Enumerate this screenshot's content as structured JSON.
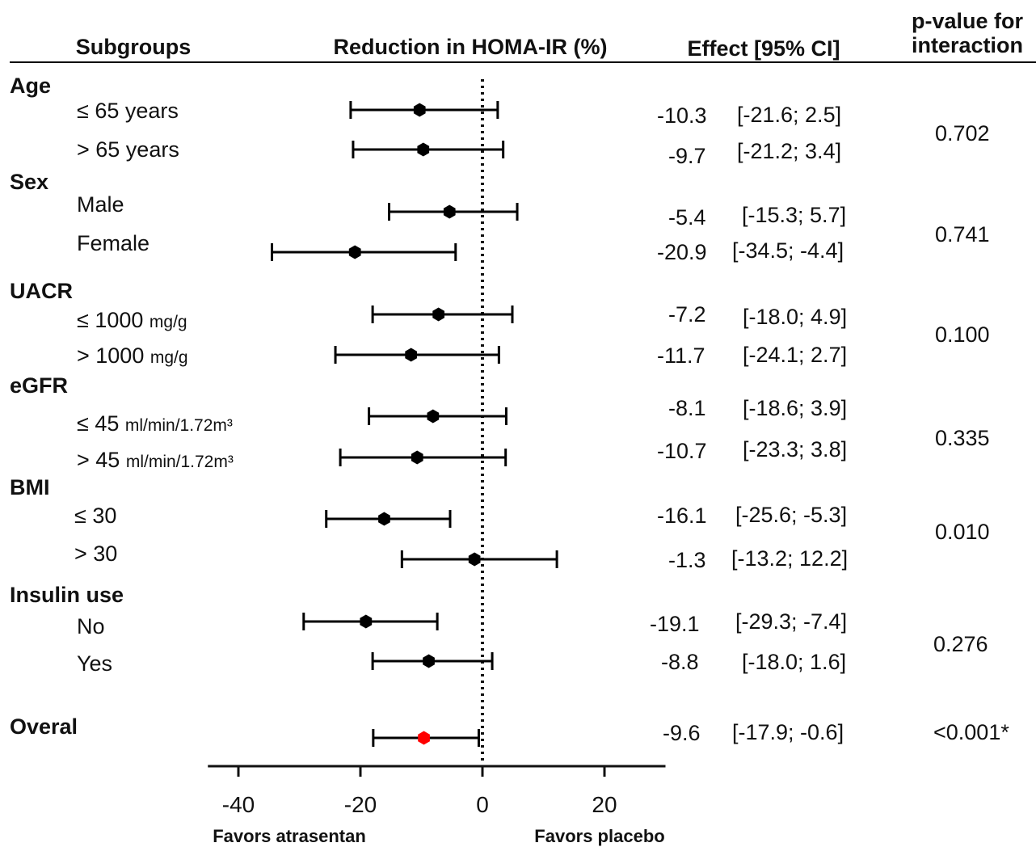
{
  "headers": {
    "subgroups": "Subgroups",
    "reduction": "Reduction in HOMA-IR (%)",
    "effect": "Effect [95% CI]",
    "pvalue_line1": "p-value for",
    "pvalue_line2": "interaction"
  },
  "groups": [
    {
      "name": "Age",
      "pvalue": "0.702"
    },
    {
      "name": "Sex",
      "pvalue": "0.741"
    },
    {
      "name": "UACR",
      "pvalue": "0.100"
    },
    {
      "name": "eGFR",
      "pvalue": "0.335"
    },
    {
      "name": "BMI",
      "pvalue": "0.010"
    },
    {
      "name": "Insulin use",
      "pvalue": "0.276"
    },
    {
      "name": "Overal",
      "pvalue": "<0.001*"
    }
  ],
  "rows": [
    {
      "group": 0,
      "label": "≤ 65 years",
      "unit": "",
      "effect": "-10.3",
      "ci": "[-21.6; 2.5]"
    },
    {
      "group": 0,
      "label": "> 65 years",
      "unit": "",
      "effect": "-9.7",
      "ci": "[-21.2; 3.4]"
    },
    {
      "group": 1,
      "label": "Male",
      "unit": "",
      "effect": "-5.4",
      "ci": "[-15.3; 5.7]"
    },
    {
      "group": 1,
      "label": "Female",
      "unit": "",
      "effect": "-20.9",
      "ci": "[-34.5; -4.4]"
    },
    {
      "group": 2,
      "label": "≤ 1000",
      "unit": "mg/g",
      "effect": "-7.2",
      "ci": "[-18.0; 4.9]"
    },
    {
      "group": 2,
      "label": "> 1000",
      "unit": "mg/g",
      "effect": "-11.7",
      "ci": "[-24.1; 2.7]"
    },
    {
      "group": 3,
      "label": "≤ 45",
      "unit": "ml/min/1.72m³",
      "effect": "-8.1",
      "ci": "[-18.6; 3.9]"
    },
    {
      "group": 3,
      "label": "> 45",
      "unit": "ml/min/1.72m³",
      "effect": "-10.7",
      "ci": "[-23.3; 3.8]"
    },
    {
      "group": 4,
      "label": "≤ 30",
      "unit": "",
      "effect": "-16.1",
      "ci": "[-25.6; -5.3]"
    },
    {
      "group": 4,
      "label": "> 30",
      "unit": "",
      "effect": "-1.3",
      "ci": "[-13.2; 12.2]"
    },
    {
      "group": 5,
      "label": "No",
      "unit": "",
      "effect": "-19.1",
      "ci": "[-29.3; -7.4]"
    },
    {
      "group": 5,
      "label": "Yes",
      "unit": "",
      "effect": "-8.8",
      "ci": "[-18.0; 1.6]"
    },
    {
      "group": 6,
      "label": "",
      "unit": "",
      "effect": "-9.6",
      "ci": "[-17.9; -0.6]"
    }
  ],
  "axis": {
    "favors_left": "Favors atrasentan",
    "favors_right": "Favors placebo"
  },
  "colors": {
    "point": "#000000",
    "overall_point": "#ff0000",
    "line": "#000000"
  },
  "chart_data": {
    "type": "forest",
    "title": "",
    "xlabel": "Reduction in HOMA-IR (%)",
    "xlim": [
      -45,
      30
    ],
    "xticks": [
      -40,
      -20,
      0,
      20
    ],
    "reference_line": 0,
    "points": [
      {
        "label": "≤ 65 years",
        "estimate": -10.3,
        "lower": -21.6,
        "upper": 2.5
      },
      {
        "label": "> 65 years",
        "estimate": -9.7,
        "lower": -21.2,
        "upper": 3.4
      },
      {
        "label": "Male",
        "estimate": -5.4,
        "lower": -15.3,
        "upper": 5.7
      },
      {
        "label": "Female",
        "estimate": -20.9,
        "lower": -34.5,
        "upper": -4.4
      },
      {
        "label": "≤ 1000 mg/g",
        "estimate": -7.2,
        "lower": -18.0,
        "upper": 4.9
      },
      {
        "label": "> 1000 mg/g",
        "estimate": -11.7,
        "lower": -24.1,
        "upper": 2.7
      },
      {
        "label": "≤ 45 ml/min/1.72m³",
        "estimate": -8.1,
        "lower": -18.6,
        "upper": 3.9
      },
      {
        "label": "> 45 ml/min/1.72m³",
        "estimate": -10.7,
        "lower": -23.3,
        "upper": 3.8
      },
      {
        "label": "≤ 30",
        "estimate": -16.1,
        "lower": -25.6,
        "upper": -5.3
      },
      {
        "label": "> 30",
        "estimate": -1.3,
        "lower": -13.2,
        "upper": 12.2
      },
      {
        "label": "No",
        "estimate": -19.1,
        "lower": -29.3,
        "upper": -7.4
      },
      {
        "label": "Yes",
        "estimate": -8.8,
        "lower": -18.0,
        "upper": 1.6
      },
      {
        "label": "Overal",
        "estimate": -9.6,
        "lower": -17.9,
        "upper": -0.6
      }
    ]
  }
}
